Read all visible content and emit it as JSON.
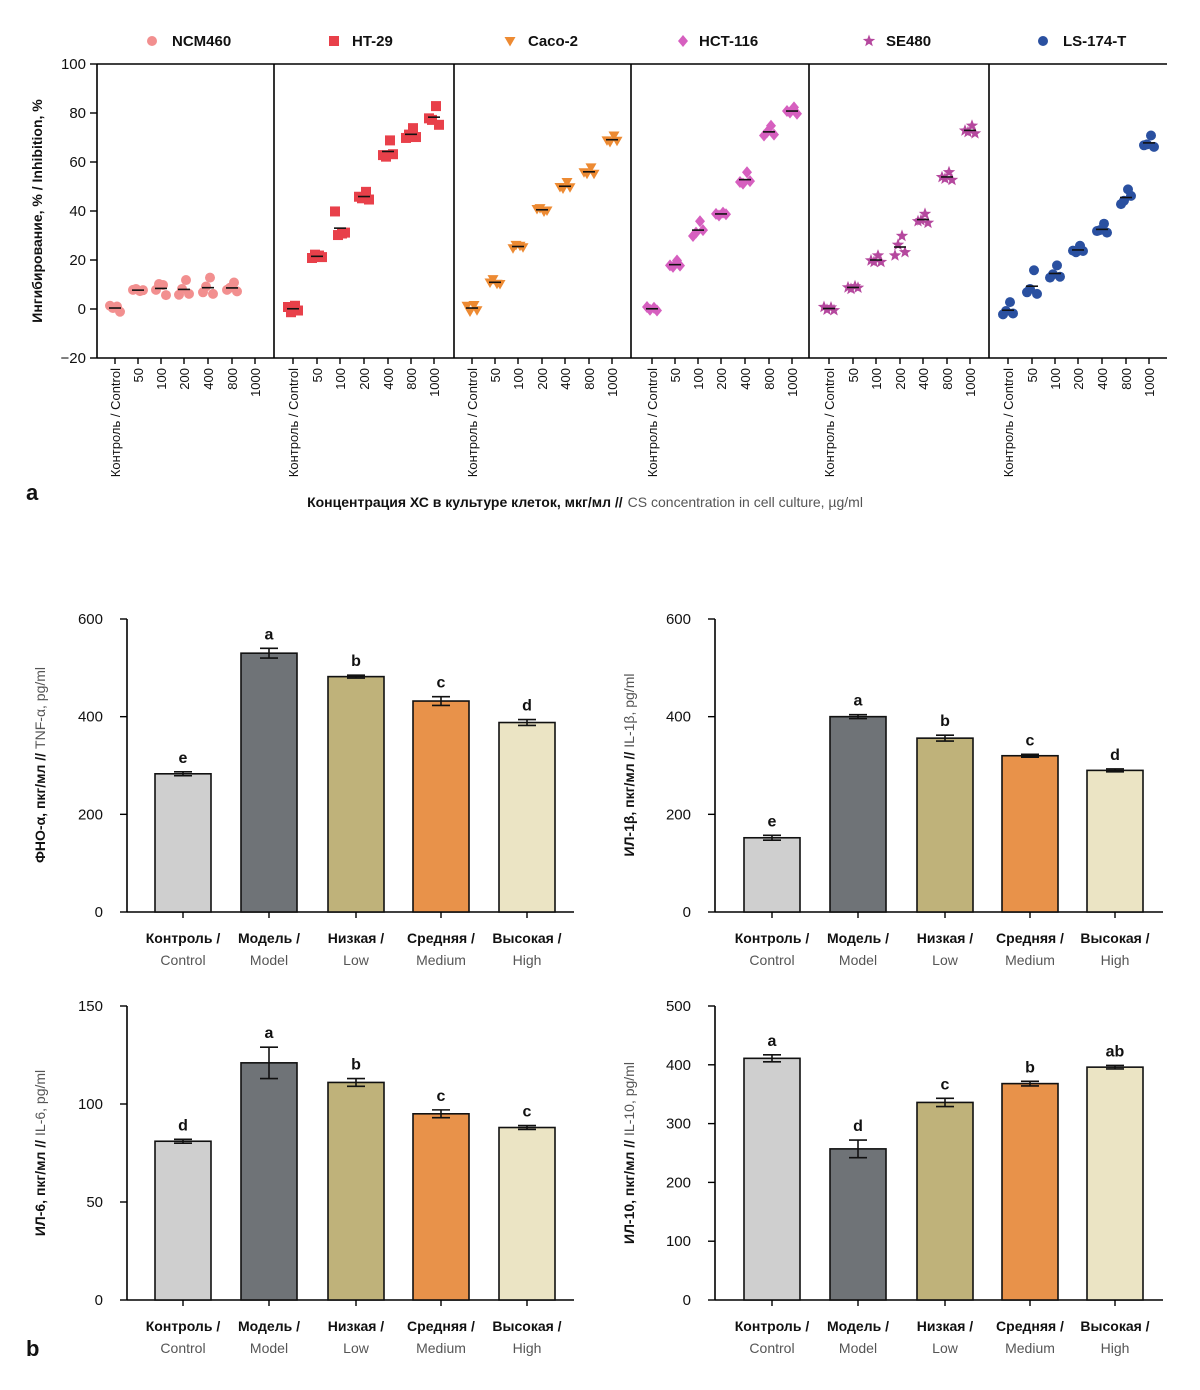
{
  "panel_labels": {
    "a": "a",
    "b": "b"
  },
  "chart_data": [
    {
      "type": "scatter",
      "panel": "a",
      "ylabel": "Ингибирование, % / Inhibition, %",
      "xlabel_ru": "Концентрация ХС в культуре клеток, мкг/мл //",
      "xlabel_en": "CS concentration in cell culture, µg/ml",
      "ylim": [
        -20,
        100
      ],
      "yticks": [
        100,
        80,
        60,
        40,
        20,
        0,
        -20
      ],
      "ytick_labels": [
        "100",
        "80",
        "60",
        "40",
        "20",
        "0",
        "−20"
      ],
      "categories": [
        "Контроль / Control",
        "50",
        "100",
        "200",
        "400",
        "800",
        "1000"
      ],
      "series": [
        {
          "name": "NCM460",
          "color": "#f28f8f",
          "marker": "circle",
          "points": [
            [
              0,
              [
                0.5,
                1.2,
                0.2,
                -0.3
              ]
            ],
            [
              1,
              [
                7,
                9,
                6.5,
                8.5
              ]
            ],
            [
              2,
              [
                7,
                11,
                9,
                6.5
              ]
            ],
            [
              3,
              [
                5,
                9,
                11,
                7
              ]
            ],
            [
              4,
              [
                6,
                10,
                12,
                7
              ]
            ],
            [
              5,
              [
                7,
                9.5,
                10,
                8
              ]
            ]
          ],
          "means": [
            0.4,
            7.7,
            8.4,
            8,
            8.7,
            8.6
          ]
        },
        {
          "name": "HT-29",
          "color": "#e8404a",
          "marker": "square",
          "points": [
            [
              0,
              [
                0,
                -0.5,
                0.5,
                0.2
              ]
            ],
            [
              1,
              [
                20,
                23,
                21,
                22
              ]
            ],
            [
              2,
              [
                39,
                31,
                30,
                32
              ]
            ],
            [
              3,
              [
                45,
                46,
                47,
                45.5
              ]
            ],
            [
              4,
              [
                62,
                63,
                68,
                64
              ]
            ],
            [
              5,
              [
                69,
                72,
                73,
                71
              ]
            ],
            [
              6,
              [
                77,
                78,
                82,
                76
              ]
            ]
          ],
          "means": [
            0.1,
            21.5,
            33,
            45.9,
            64.3,
            71.3,
            78.3
          ]
        },
        {
          "name": "Caco-2",
          "color": "#ed8a32",
          "marker": "triangle-down",
          "points": [
            [
              0,
              [
                0.5,
                -0.2,
                0.8,
                0.3
              ]
            ],
            [
              1,
              [
                10,
                13,
                9.5,
                11
              ]
            ],
            [
              2,
              [
                24,
                27,
                25,
                26
              ]
            ],
            [
              3,
              [
                40,
                42,
                39,
                41
              ]
            ],
            [
              4,
              [
                49,
                50,
                51,
                50.5
              ]
            ],
            [
              5,
              [
                55,
                56,
                57,
                56
              ]
            ],
            [
              6,
              [
                68,
                69,
                70,
                69.5
              ]
            ]
          ],
          "means": [
            0.4,
            10.9,
            25.5,
            40.5,
            50.1,
            56,
            69.1
          ]
        },
        {
          "name": "HCT-116",
          "color": "#d65fbf",
          "marker": "diamond",
          "points": [
            [
              0,
              [
                0,
                0.5,
                -0.3,
                0.2
              ]
            ],
            [
              1,
              [
                17,
                18,
                19,
                18.5
              ]
            ],
            [
              2,
              [
                29,
                32,
                35,
                33
              ]
            ],
            [
              3,
              [
                38,
                39,
                38.5,
                39.5
              ]
            ],
            [
              4,
              [
                51,
                52,
                55,
                53
              ]
            ],
            [
              5,
              [
                70,
                73,
                74,
                72
              ]
            ],
            [
              6,
              [
                80,
                81,
                81.5,
                80.5
              ]
            ]
          ],
          "means": [
            0.1,
            18.1,
            32.2,
            38.8,
            52.8,
            72.3,
            80.8
          ]
        },
        {
          "name": "SE480",
          "color": "#b5489e",
          "marker": "star",
          "points": [
            [
              0,
              [
                0,
                0.5,
                -0.2,
                0.3
              ]
            ],
            [
              1,
              [
                8,
                9,
                8.5,
                9.5
              ]
            ],
            [
              2,
              [
                19,
                20,
                21,
                20
              ]
            ],
            [
              3,
              [
                21,
                27,
                29,
                24
              ]
            ],
            [
              4,
              [
                35,
                37,
                38,
                36
              ]
            ],
            [
              5,
              [
                53,
                54,
                55,
                53.5
              ]
            ],
            [
              6,
              [
                72,
                73,
                74,
                72.5
              ]
            ]
          ],
          "means": [
            0.2,
            8.8,
            20,
            25.3,
            36.5,
            53.9,
            72.9
          ]
        },
        {
          "name": "LS-174-T",
          "color": "#2a50a0",
          "marker": "circle",
          "points": [
            [
              0,
              [
                -3,
                0,
                2,
                -1
              ]
            ],
            [
              1,
              [
                6,
                9,
                15,
                7
              ]
            ],
            [
              2,
              [
                12,
                15,
                17,
                14
              ]
            ],
            [
              3,
              [
                23,
                24,
                25,
                24.5
              ]
            ],
            [
              4,
              [
                31,
                33,
                34,
                32
              ]
            ],
            [
              5,
              [
                42,
                45,
                48,
                47
              ]
            ],
            [
              6,
              [
                66,
                68,
                70,
                67
              ]
            ]
          ],
          "means": [
            -0.5,
            9.3,
            14.5,
            24.1,
            32.5,
            45.5,
            67.8
          ]
        }
      ]
    },
    {
      "type": "bar",
      "panel": "b",
      "ylabel_ru": "ФНО-α, пкг/мл //",
      "ylabel_en": "TNF-α, pg/ml",
      "ylim": [
        0,
        600
      ],
      "yticks": [
        0,
        200,
        400,
        600
      ],
      "categories": [
        [
          "Контроль /",
          "Control"
        ],
        [
          "Модель /",
          "Model"
        ],
        [
          "Низкая /",
          "Low"
        ],
        [
          "Средняя /",
          "Medium"
        ],
        [
          "Высокая /",
          "High"
        ]
      ],
      "values": [
        283,
        530,
        482,
        432,
        388
      ],
      "errors": [
        4,
        10,
        3,
        9,
        6
      ],
      "letters": [
        "e",
        "a",
        "b",
        "c",
        "d"
      ]
    },
    {
      "type": "bar",
      "panel": "b",
      "ylabel_ru": "ИЛ-1β, пкг/мл //",
      "ylabel_en": "IL-1β, pg/ml",
      "ylim": [
        0,
        600
      ],
      "yticks": [
        0,
        200,
        400,
        600
      ],
      "categories": [
        [
          "Контроль /",
          "Control"
        ],
        [
          "Модель /",
          "Model"
        ],
        [
          "Низкая /",
          "Low"
        ],
        [
          "Средняя /",
          "Medium"
        ],
        [
          "Высокая /",
          "High"
        ]
      ],
      "values": [
        152,
        400,
        356,
        320,
        290
      ],
      "errors": [
        5,
        4,
        6,
        3,
        3
      ],
      "letters": [
        "e",
        "a",
        "b",
        "c",
        "d"
      ]
    },
    {
      "type": "bar",
      "panel": "b",
      "ylabel_ru": "ИЛ-6, пкг/мл //",
      "ylabel_en": "IL-6, pg/ml",
      "ylim": [
        0,
        150
      ],
      "yticks": [
        0,
        50,
        100,
        150
      ],
      "categories": [
        [
          "Контроль /",
          "Control"
        ],
        [
          "Модель /",
          "Model"
        ],
        [
          "Низкая /",
          "Low"
        ],
        [
          "Средняя /",
          "Medium"
        ],
        [
          "Высокая /",
          "High"
        ]
      ],
      "values": [
        81,
        121,
        111,
        95,
        88
      ],
      "errors": [
        1,
        8,
        2,
        2,
        1
      ],
      "letters": [
        "d",
        "a",
        "b",
        "c",
        "c"
      ]
    },
    {
      "type": "bar",
      "panel": "b",
      "ylabel_ru": "ИЛ-10, пкг/мл //",
      "ylabel_en": "IL-10, pg/ml",
      "ylim": [
        0,
        500
      ],
      "yticks": [
        0,
        100,
        200,
        300,
        400,
        500
      ],
      "categories": [
        [
          "Контроль /",
          "Control"
        ],
        [
          "Модель /",
          "Model"
        ],
        [
          "Низкая /",
          "Low"
        ],
        [
          "Средняя /",
          "Medium"
        ],
        [
          "Высокая /",
          "High"
        ]
      ],
      "values": [
        411,
        257,
        336,
        368,
        396
      ],
      "errors": [
        6,
        15,
        7,
        4,
        3
      ],
      "letters": [
        "a",
        "d",
        "c",
        "b",
        "ab"
      ]
    }
  ],
  "bar_colors": [
    "#cfcfcf",
    "#6f7377",
    "#bfb27a",
    "#e8924a",
    "#ebe4c4"
  ]
}
